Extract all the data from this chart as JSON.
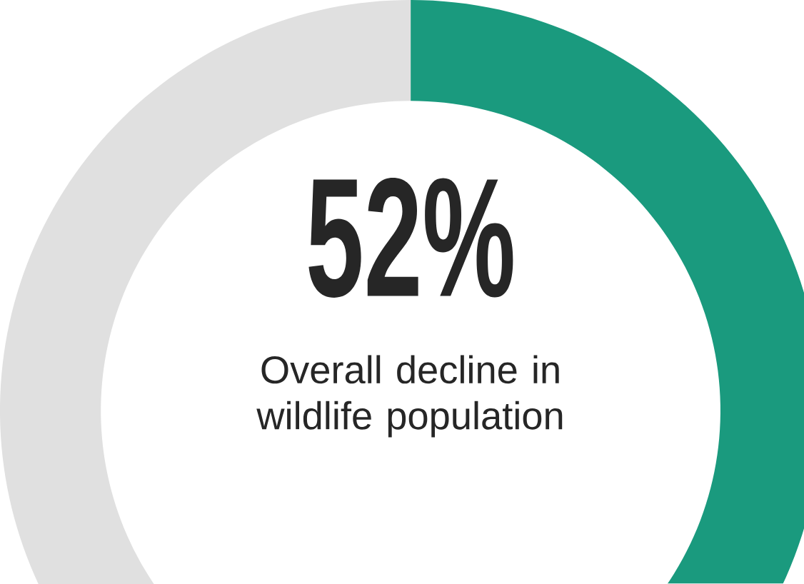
{
  "chart_data": {
    "type": "donut",
    "categories": [
      null,
      null
    ],
    "values": [
      52,
      48
    ],
    "colors": [
      "#1a9a7e",
      "#e0e0e0"
    ],
    "annotations": [
      "52%",
      "Overall decline in wildlife population"
    ]
  }
}
